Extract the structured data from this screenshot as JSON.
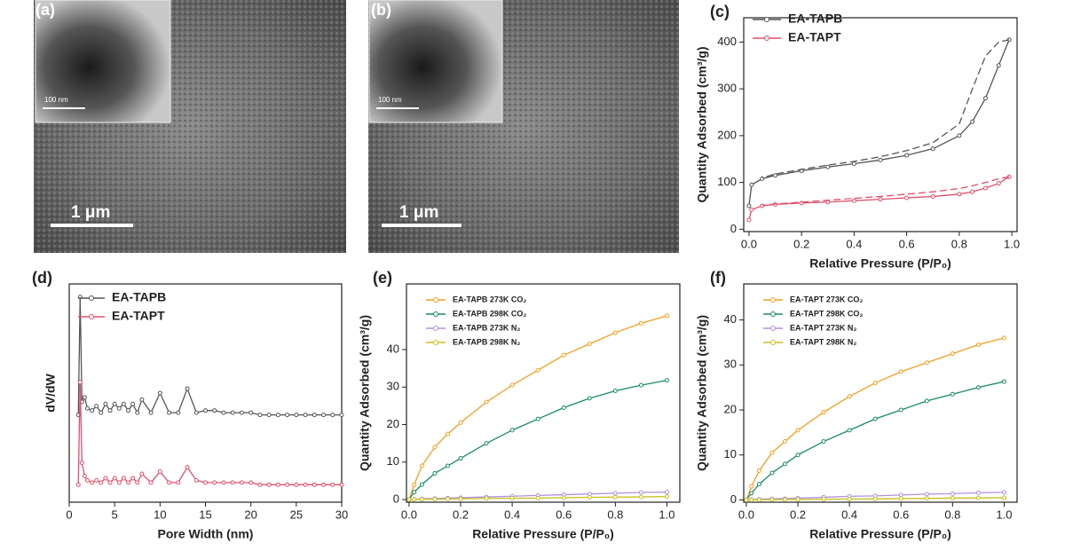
{
  "images": [
    {
      "label": "(a)",
      "scale_bar": "1 μm",
      "inset_scale_bar": "100 nm"
    },
    {
      "label": "(b)",
      "scale_bar": "1 μm",
      "inset_scale_bar": "100 nm"
    }
  ],
  "chart_data": [
    {
      "type": "line",
      "panel_label": "(c)",
      "x_label": "Relative Pressure (P/P₀)",
      "y_label": "Quantity Adsorbed (cm³/g)",
      "legend": "upper left",
      "xlim": [
        -0.02,
        1.02
      ],
      "ylim": [
        -5,
        452
      ],
      "xticks": [
        {
          "value": 0,
          "label": "0.0"
        },
        {
          "value": 0.2,
          "label": "0.2"
        },
        {
          "value": 0.4,
          "label": "0.4"
        },
        {
          "value": 0.6,
          "label": "0.6"
        },
        {
          "value": 0.8,
          "label": "0.8"
        },
        {
          "value": 1,
          "label": "1.0"
        }
      ],
      "yticks": [
        0,
        100,
        200,
        300,
        400
      ],
      "series": [
        {
          "name": "EA-TAPB",
          "color": "#555555",
          "x": [
            0,
            0.01,
            0.05,
            0.1,
            0.2,
            0.3,
            0.4,
            0.5,
            0.6,
            0.7,
            0.8,
            0.85,
            0.9,
            0.95,
            0.99
          ],
          "values": [
            50,
            95,
            108,
            115,
            125,
            133,
            140,
            148,
            158,
            172,
            200,
            230,
            280,
            350,
            405
          ]
        },
        {
          "color": "#555555",
          "dash": true,
          "x": [
            0.99,
            0.95,
            0.9,
            0.85,
            0.8,
            0.7,
            0.6,
            0.5,
            0.4,
            0.3,
            0.2,
            0.1,
            0.05
          ],
          "values": [
            405,
            400,
            370,
            300,
            225,
            185,
            168,
            155,
            145,
            137,
            128,
            118,
            110
          ]
        },
        {
          "name": "EA-TAPT",
          "color": "#e0506a",
          "x": [
            0,
            0.01,
            0.05,
            0.1,
            0.2,
            0.3,
            0.4,
            0.5,
            0.6,
            0.7,
            0.8,
            0.85,
            0.9,
            0.95,
            0.99
          ],
          "values": [
            20,
            42,
            50,
            53,
            56,
            58,
            61,
            64,
            67,
            70,
            75,
            80,
            88,
            98,
            112
          ]
        },
        {
          "color": "#e0506a",
          "dash": true,
          "x": [
            0.99,
            0.95,
            0.9,
            0.85,
            0.8,
            0.7,
            0.6,
            0.5,
            0.4,
            0.3,
            0.2,
            0.1,
            0.05
          ],
          "values": [
            112,
            108,
            100,
            93,
            87,
            80,
            75,
            70,
            66,
            62,
            58,
            54,
            51
          ]
        }
      ]
    },
    {
      "type": "line",
      "panel_label": "(d)",
      "x_label": "Pore Width (nm)",
      "y_label": "dV/dW",
      "legend": "upper left",
      "xlim": [
        0,
        30
      ],
      "ylim": [
        0,
        10
      ],
      "xticks": [
        0,
        5,
        10,
        15,
        20,
        25,
        30
      ],
      "x": [
        1.0,
        1.2,
        1.4,
        1.7,
        2.0,
        2.5,
        3.0,
        3.5,
        4.0,
        4.5,
        5.0,
        5.5,
        6.0,
        6.5,
        7.0,
        7.5,
        8.0,
        9.0,
        10.0,
        11.0,
        12.0,
        13.0,
        14.0,
        15,
        16,
        17,
        18,
        19,
        20,
        21,
        22,
        23,
        24,
        25,
        26,
        27,
        28,
        29,
        30
      ],
      "series": [
        {
          "name": "EA-TAPB",
          "color": "#555555",
          "values": [
            4.0,
            9.4,
            4.6,
            4.8,
            4.3,
            4.2,
            4.4,
            4.1,
            4.5,
            4.2,
            4.5,
            4.3,
            4.5,
            4.2,
            4.5,
            4.1,
            4.7,
            4.1,
            5.0,
            4.1,
            4.1,
            5.2,
            4.1,
            4.2,
            4.2,
            4.1,
            4.1,
            4.1,
            4.1,
            4.0,
            4.0,
            4.0,
            4.0,
            4.0,
            4.0,
            4.0,
            4.0,
            4.0,
            4.0
          ]
        },
        {
          "name": "EA-TAPT",
          "color": "#e0506a",
          "values": [
            0.8,
            5.5,
            1.8,
            1.2,
            1.0,
            0.9,
            1.0,
            0.9,
            1.1,
            0.9,
            1.1,
            0.9,
            1.1,
            0.9,
            1.1,
            0.9,
            1.3,
            0.9,
            1.4,
            0.9,
            0.9,
            1.6,
            1.0,
            0.9,
            0.9,
            0.9,
            0.9,
            0.9,
            0.9,
            0.8,
            0.8,
            0.8,
            0.8,
            0.8,
            0.8,
            0.8,
            0.8,
            0.8,
            0.8
          ]
        }
      ]
    },
    {
      "type": "line",
      "panel_label": "(e)",
      "x_label": "Relative Pressure (P/P₀)",
      "y_label": "Quantity Adsorbed (cm³/g)",
      "legend": "upper left",
      "xlim": [
        -0.01,
        1.05
      ],
      "ylim": [
        -0.7,
        57.5
      ],
      "xticks": [
        {
          "value": 0,
          "label": "0.0"
        },
        {
          "value": 0.2,
          "label": "0.2"
        },
        {
          "value": 0.4,
          "label": "0.4"
        },
        {
          "value": 0.6,
          "label": "0.6"
        },
        {
          "value": 0.8,
          "label": "0.8"
        },
        {
          "value": 1,
          "label": "1.0"
        }
      ],
      "yticks": [
        0,
        10,
        20,
        30,
        40
      ],
      "x": [
        0,
        0.02,
        0.05,
        0.1,
        0.15,
        0.2,
        0.3,
        0.4,
        0.5,
        0.6,
        0.7,
        0.8,
        0.9,
        1.0
      ],
      "series": [
        {
          "name": "EA-TAPB 273K CO₂",
          "color": "#f0a020",
          "values": [
            0,
            4,
            9,
            14,
            17.5,
            20.5,
            26,
            30.5,
            34.5,
            38.5,
            41.5,
            44.5,
            47,
            49
          ]
        },
        {
          "name": "EA-TAPB 298K CO₂",
          "color": "#1a8a6a",
          "values": [
            0,
            2,
            4,
            7,
            9,
            11,
            15,
            18.5,
            21.5,
            24.5,
            27,
            29,
            30.5,
            31.8
          ]
        },
        {
          "name": "EA-TAPB 273K N₂",
          "color": "#b090e0",
          "values": [
            0,
            0.1,
            0.2,
            0.3,
            0.4,
            0.5,
            0.7,
            0.9,
            1.1,
            1.3,
            1.5,
            1.7,
            1.9,
            2.0
          ]
        },
        {
          "name": "EA-TAPB 298K N₂",
          "color": "#c8c020",
          "values": [
            0,
            0.05,
            0.08,
            0.1,
            0.15,
            0.2,
            0.3,
            0.35,
            0.4,
            0.5,
            0.6,
            0.65,
            0.7,
            0.8
          ]
        }
      ]
    },
    {
      "type": "line",
      "panel_label": "(f)",
      "x_label": "Relative Pressure (P/P₀)",
      "y_label": "Quantity Adsorbed (cm³/g)",
      "legend": "upper left",
      "xlim": [
        -0.01,
        1.05
      ],
      "ylim": [
        -0.5,
        48
      ],
      "xticks": [
        {
          "value": 0,
          "label": "0.0"
        },
        {
          "value": 0.2,
          "label": "0.2"
        },
        {
          "value": 0.4,
          "label": "0.4"
        },
        {
          "value": 0.6,
          "label": "0.6"
        },
        {
          "value": 0.8,
          "label": "0.8"
        },
        {
          "value": 1,
          "label": "1.0"
        }
      ],
      "yticks": [
        0,
        10,
        20,
        30,
        40
      ],
      "x": [
        0,
        0.02,
        0.05,
        0.1,
        0.15,
        0.2,
        0.3,
        0.4,
        0.5,
        0.6,
        0.7,
        0.8,
        0.9,
        1.0
      ],
      "series": [
        {
          "name": "EA-TAPT 273K CO₂",
          "color": "#f0a020",
          "values": [
            0,
            3,
            6.5,
            10.5,
            13,
            15.5,
            19.5,
            23,
            26,
            28.5,
            30.5,
            32.5,
            34.5,
            36
          ]
        },
        {
          "name": "EA-TAPT 298K CO₂",
          "color": "#1a8a6a",
          "values": [
            0,
            1.5,
            3.5,
            6,
            8,
            10,
            13,
            15.5,
            18,
            20,
            22,
            23.5,
            25,
            26.3
          ]
        },
        {
          "name": "EA-TAPT 273K N₂",
          "color": "#b090e0",
          "values": [
            0,
            0.1,
            0.15,
            0.25,
            0.3,
            0.4,
            0.6,
            0.8,
            0.9,
            1.1,
            1.3,
            1.4,
            1.6,
            1.7
          ]
        },
        {
          "name": "EA-TAPT 298K N₂",
          "color": "#c8c020",
          "values": [
            0,
            0.02,
            0.04,
            0.06,
            0.08,
            0.1,
            0.15,
            0.2,
            0.25,
            0.3,
            0.35,
            0.4,
            0.45,
            0.5
          ]
        }
      ]
    }
  ]
}
